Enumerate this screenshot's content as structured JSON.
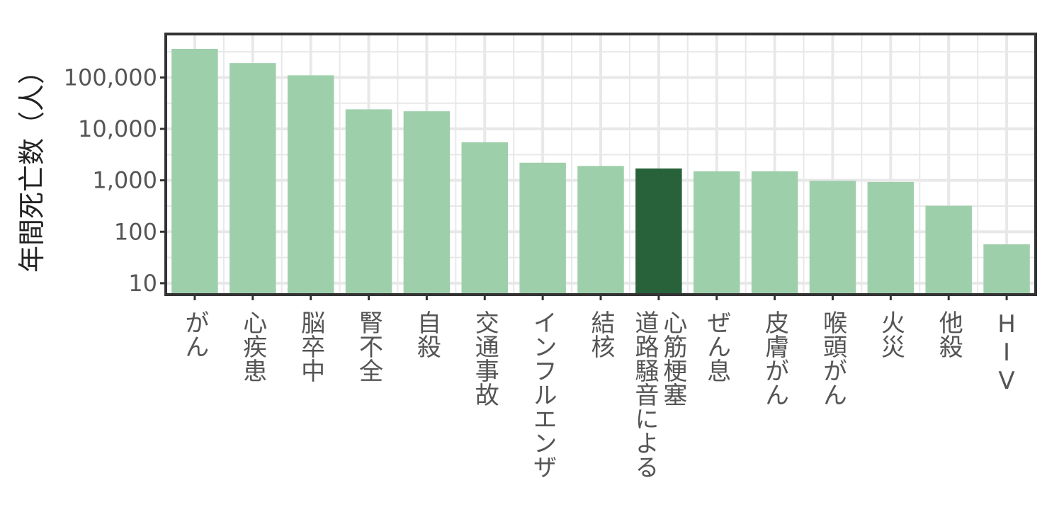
{
  "chart_data": {
    "type": "bar",
    "title": "",
    "xlabel": "",
    "ylabel": "年間死亡数（人）",
    "y_scale": "log10",
    "ylim": [
      6,
      700000
    ],
    "y_ticks": [
      10,
      100,
      1000,
      10000,
      100000
    ],
    "y_tick_labels": [
      "10",
      "100",
      "1,000",
      "10,000",
      "100,000"
    ],
    "grid": true,
    "legend": "none",
    "categories": [
      "がん",
      "心疾患",
      "脳卒中",
      "腎不全",
      "自殺",
      "交通事故",
      "インフルエンザ",
      "結核",
      "道路騒音による\n心筋梗塞",
      "ぜん息",
      "皮膚がん",
      "喉頭がん",
      "火災",
      "他殺",
      "HIV"
    ],
    "values": [
      360000,
      190000,
      110000,
      24000,
      22000,
      5500,
      2200,
      1900,
      1700,
      1500,
      1500,
      980,
      930,
      320,
      57
    ],
    "highlight_index": 8,
    "colors": {
      "bar": "#9ecfab",
      "highlight": "#27623a",
      "grid": "#e8e8e8",
      "frame": "#333333",
      "text": "#555555",
      "ylabel_text": "#222222"
    }
  }
}
